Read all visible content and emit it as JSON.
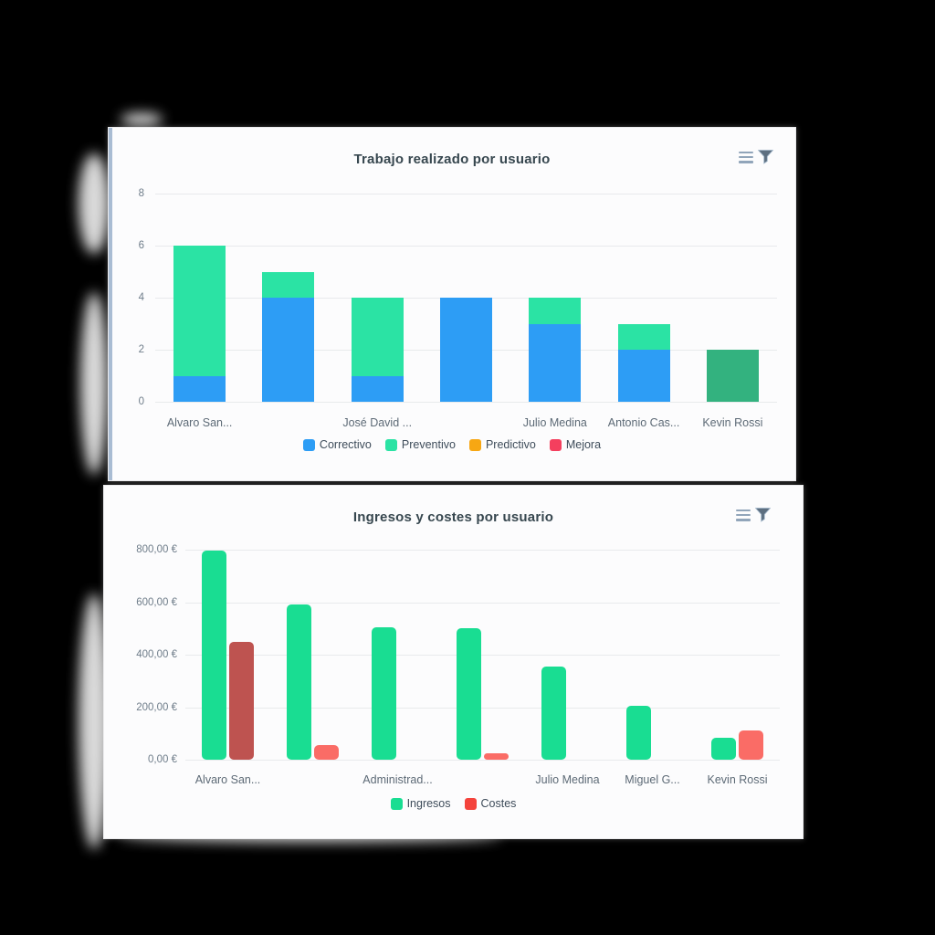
{
  "page": {
    "background_color": "#000000"
  },
  "chart_data": [
    {
      "type": "bar",
      "variant": "stacked",
      "title": "Trabajo realizado por usuario",
      "toolbar_icons": [
        "menu-icon",
        "filter-icon"
      ],
      "categories": [
        "Alvaro San...",
        "",
        "José David ...",
        "",
        "Julio Medina",
        "Antonio Cas...",
        "Kevin Rossi"
      ],
      "series": [
        {
          "name": "Correctivo",
          "color": "#2D9DF5",
          "values": [
            1,
            4,
            1,
            4,
            3,
            2,
            0
          ]
        },
        {
          "name": "Preventivo",
          "color": "#2BE3A4",
          "values": [
            5,
            1,
            3,
            0,
            1,
            1,
            2
          ],
          "bar_colors": [
            null,
            null,
            null,
            null,
            null,
            null,
            "#33B27F"
          ]
        },
        {
          "name": "Predictivo",
          "color": "#F7A713",
          "values": [
            0,
            0,
            0,
            0,
            0,
            0,
            0
          ]
        },
        {
          "name": "Mejora",
          "color": "#F43F5E",
          "values": [
            0,
            0,
            0,
            0,
            0,
            0,
            0
          ]
        }
      ],
      "ylim": [
        0,
        8
      ],
      "yticks": [
        {
          "label": "8",
          "value": 8
        },
        {
          "label": "6",
          "value": 6
        },
        {
          "label": "4",
          "value": 4
        },
        {
          "label": "2",
          "value": 2
        },
        {
          "label": "0",
          "value": 0
        }
      ],
      "grid": true,
      "legend_position": "bottom"
    },
    {
      "type": "bar",
      "variant": "grouped",
      "title": "Ingresos y costes por usuario",
      "toolbar_icons": [
        "menu-icon",
        "filter-icon"
      ],
      "categories": [
        "Alvaro San...",
        "",
        "Administrad...",
        "",
        "Julio Medina",
        "Miguel G...",
        "Kevin Rossi"
      ],
      "series": [
        {
          "name": "Ingresos",
          "color": "#19DD92",
          "values": [
            795,
            590,
            505,
            500,
            355,
            205,
            85
          ]
        },
        {
          "name": "Costes",
          "color": "#FA6C66",
          "legend_color": "#F4433C",
          "values": [
            450,
            55,
            0,
            25,
            0,
            0,
            110
          ],
          "bar_colors": [
            "#BE5350",
            null,
            null,
            null,
            null,
            null,
            null
          ]
        }
      ],
      "ylim": [
        0,
        800
      ],
      "yticks": [
        {
          "label": "800,00 €",
          "value": 800
        },
        {
          "label": "600,00 €",
          "value": 600
        },
        {
          "label": "400,00 €",
          "value": 400
        },
        {
          "label": "200,00 €",
          "value": 200
        },
        {
          "label": "0,00 €",
          "value": 0
        }
      ],
      "grid": true,
      "legend_position": "bottom"
    }
  ],
  "colors": {
    "card_background": "#FCFCFD",
    "grid_line": "#E8EAEC",
    "title_text": "#37474F",
    "axis_text": "#6F7D8A",
    "category_text": "#5D6A76",
    "legend_text": "#3E4C5A",
    "accent_line": "#A9BCD3",
    "menu_icon": "#91A5BA",
    "filter_icon": "#5D6F80"
  }
}
